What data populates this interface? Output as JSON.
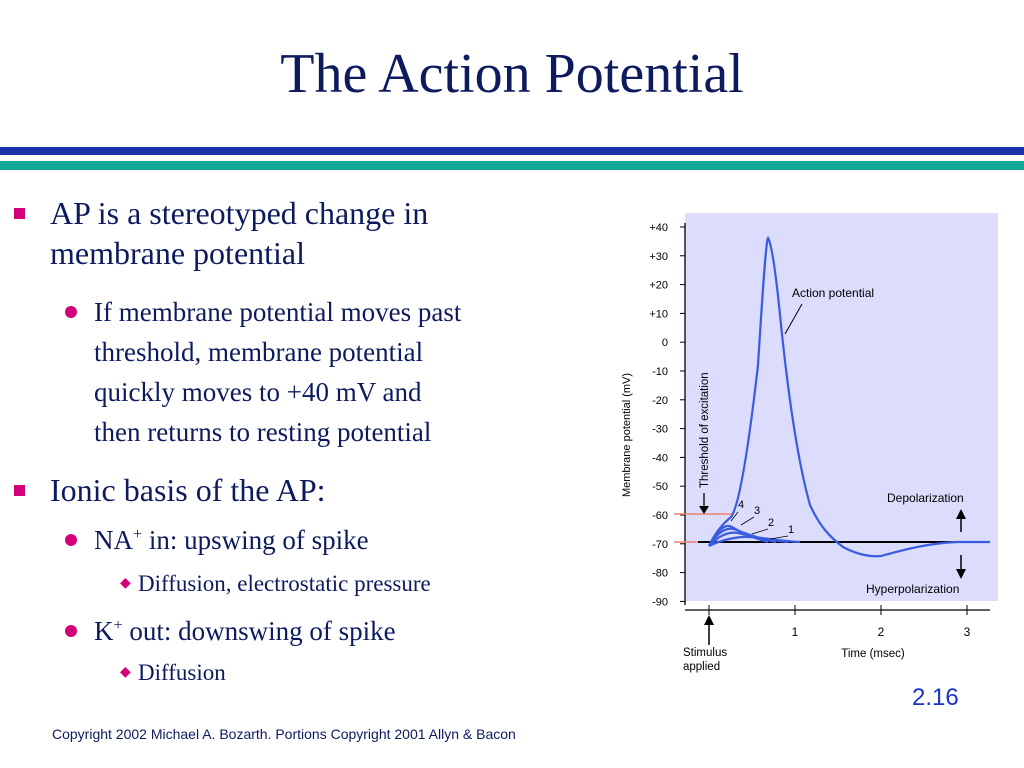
{
  "slide": {
    "title": "The Action Potential",
    "number": "2.16",
    "copyright": "Copyright 2002 Michael A. Bozarth. Portions Copyright 2001 Allyn & Bacon"
  },
  "bullets": {
    "b1_line1": "AP is a stereotyped change in",
    "b1_line2": "membrane potential",
    "b1_sub_lines": [
      "If membrane potential moves past",
      "threshold, membrane potential",
      "quickly moves to +40 mV and",
      "then returns to resting potential"
    ],
    "b2": "Ionic basis of the AP:",
    "na_pre": "NA",
    "na_sup": "+",
    "na_post": " in: upswing of spike",
    "na_detail": "Diffusion, electrostatic pressure",
    "k_pre": "K",
    "k_sup": "+",
    "k_post": " out: downswing of spike",
    "k_detail": "Diffusion"
  },
  "diagram": {
    "background_color": "#dcdcfc",
    "curve_color": "#3a5ce0",
    "threshold_color": "#f08070",
    "y_axis_label": "Membrane potential (mV)",
    "y_ticks": [
      "+40",
      "+30",
      "+20",
      "+10",
      "0",
      "-10",
      "-20",
      "-30",
      "-40",
      "-50",
      "-60",
      "-70",
      "-80",
      "-90"
    ],
    "x_axis_label": "Time (msec)",
    "x_ticks": [
      "1",
      "2",
      "3"
    ],
    "stimulus_line1": "Stimulus",
    "stimulus_line2": "applied",
    "threshold_label": "Threshold of excitation",
    "action_potential_label": "Action potential",
    "depolarization_label": "Depolarization",
    "hyperpolarization_label": "Hyperpolarization",
    "subthreshold_labels": [
      "4",
      "3",
      "2",
      "1"
    ]
  }
}
